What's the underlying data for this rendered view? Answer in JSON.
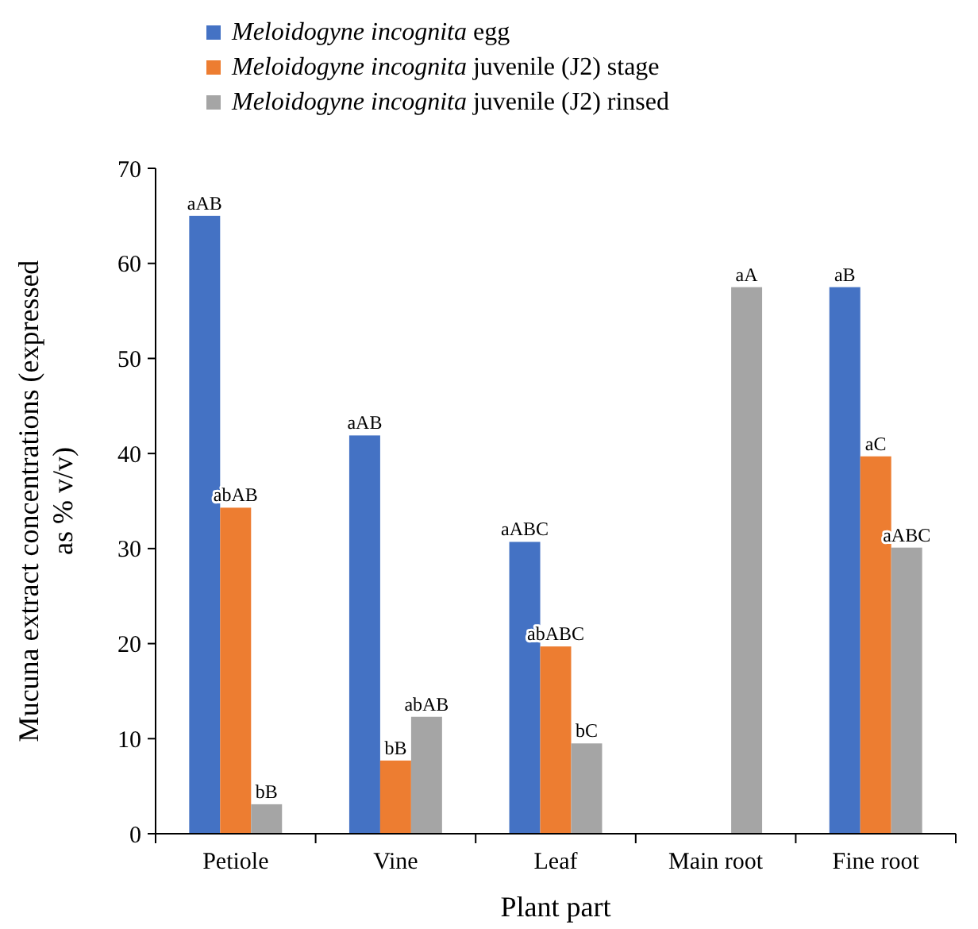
{
  "chart_data": {
    "type": "bar",
    "xlabel": "Plant part",
    "ylabel": "Mucuna extract concentrations (expressed as % v/v)",
    "categories": [
      "Petiole",
      "Vine",
      "Leaf",
      "Main root",
      "Fine root"
    ],
    "ylim": [
      0,
      70
    ],
    "yticks": [
      0,
      10,
      20,
      30,
      40,
      50,
      60,
      70
    ],
    "legend": "top left",
    "grid": false,
    "series": [
      {
        "name": "Meloidogyne incognita egg",
        "color": "#4472c4",
        "values": [
          65.0,
          41.9,
          30.7,
          null,
          57.5
        ],
        "value_labels": [
          "aAB",
          "aAB",
          "aABC",
          null,
          "aB"
        ]
      },
      {
        "name": "Meloidogyne incognita juvenile (J2) stage",
        "color": "#ed7d31",
        "values": [
          34.3,
          7.7,
          19.7,
          null,
          39.7
        ],
        "value_labels": [
          "abAB",
          "bB",
          "abABC",
          null,
          "aC"
        ]
      },
      {
        "name": "Meloidogyne incognita juvenile (J2) rinsed",
        "color": "#a5a5a5",
        "values": [
          3.1,
          12.3,
          9.5,
          57.5,
          30.1
        ],
        "value_labels": [
          "bB",
          "abAB",
          "bC",
          "aA",
          "aABC"
        ]
      }
    ]
  }
}
